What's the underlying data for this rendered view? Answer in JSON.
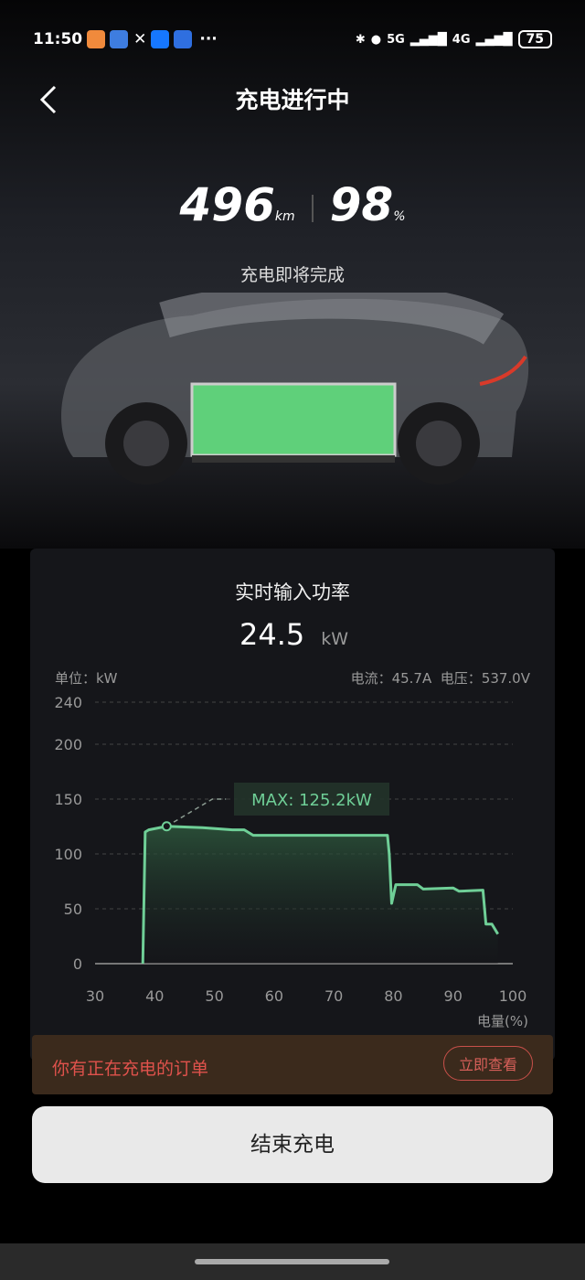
{
  "status_bar": {
    "time": "11:50",
    "network1": "5G",
    "network2": "4G",
    "battery": "75",
    "more": "···"
  },
  "header": {
    "title": "充电进行中"
  },
  "summary": {
    "range_value": "496",
    "range_unit": "km",
    "soc_value": "98",
    "soc_unit": "%",
    "status": "充电即将完成"
  },
  "colors": {
    "accent": "#6fcf97",
    "order_text": "#e0524c",
    "order_bg": "#3b2a1c"
  },
  "power_card": {
    "title": "实时输入功率",
    "value": "24.5",
    "unit": "kW",
    "unit_label": "单位：kW",
    "current": "电流：45.7A",
    "voltage": "电压：537.0V"
  },
  "chart_data": {
    "type": "area",
    "xlabel": "电量(%)",
    "ylabel": "单位：kW",
    "xlim": [
      30,
      100
    ],
    "ylim": [
      0,
      240
    ],
    "x_ticks": [
      "30",
      "40",
      "50",
      "60",
      "70",
      "80",
      "90",
      "100"
    ],
    "y_ticks": [
      "0",
      "50",
      "100",
      "150",
      "200",
      "240"
    ],
    "grid": true,
    "annotation": "MAX: 125.2kW",
    "max_point": [
      42,
      125.2
    ],
    "x": [
      38,
      38.4,
      39,
      42,
      48,
      53,
      55,
      56.5,
      79,
      79.3,
      79.7,
      80.4,
      84,
      85,
      90,
      91,
      95,
      95.5,
      96.5,
      97.5
    ],
    "y": [
      0,
      120,
      122,
      125.2,
      124,
      122,
      122,
      117,
      117,
      100,
      55,
      72,
      72,
      68,
      69,
      66,
      67,
      36,
      36,
      27
    ]
  },
  "order_banner": {
    "text": "你有正在充电的订单",
    "button": "立即查看"
  },
  "end_button": {
    "label": "结束充电"
  }
}
